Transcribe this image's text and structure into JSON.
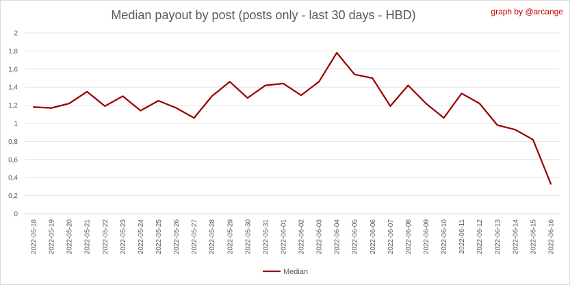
{
  "chart_data": {
    "type": "line",
    "title": "Median payout by post (posts only - last 30 days - HBD)",
    "credit": "graph by @arcange",
    "xlabel": "",
    "ylabel": "",
    "ylim": [
      0,
      2
    ],
    "yticks": [
      "0",
      "0,2",
      "0,4",
      "0,6",
      "0,8",
      "1",
      "1,2",
      "1,4",
      "1,6",
      "1,8",
      "2"
    ],
    "ytick_values": [
      0,
      0.2,
      0.4,
      0.6,
      0.8,
      1,
      1.2,
      1.4,
      1.6,
      1.8,
      2
    ],
    "grid": true,
    "legend_position": "bottom",
    "categories": [
      "2022-05-18",
      "2022-05-19",
      "2022-05-20",
      "2022-05-21",
      "2022-05-22",
      "2022-05-23",
      "2022-05-24",
      "2022-05-25",
      "2022-05-26",
      "2022-05-27",
      "2022-05-28",
      "2022-05-29",
      "2022-05-30",
      "2022-05-31",
      "2022-06-01",
      "2022-06-02",
      "2022-06-03",
      "2022-06-04",
      "2022-06-05",
      "2022-06-06",
      "2022-06-07",
      "2022-06-08",
      "2022-06-09",
      "2022-06-10",
      "2022-06-11",
      "2022-06-12",
      "2022-06-13",
      "2022-06-14",
      "2022-06-15",
      "2022-06-16"
    ],
    "series": [
      {
        "name": "Median",
        "color": "#990000",
        "values": [
          1.18,
          1.17,
          1.22,
          1.35,
          1.19,
          1.3,
          1.14,
          1.25,
          1.17,
          1.06,
          1.3,
          1.46,
          1.28,
          1.42,
          1.44,
          1.31,
          1.46,
          1.78,
          1.54,
          1.5,
          1.19,
          1.42,
          1.22,
          1.06,
          1.33,
          1.22,
          0.98,
          0.93,
          0.82,
          0.33
        ]
      }
    ]
  }
}
